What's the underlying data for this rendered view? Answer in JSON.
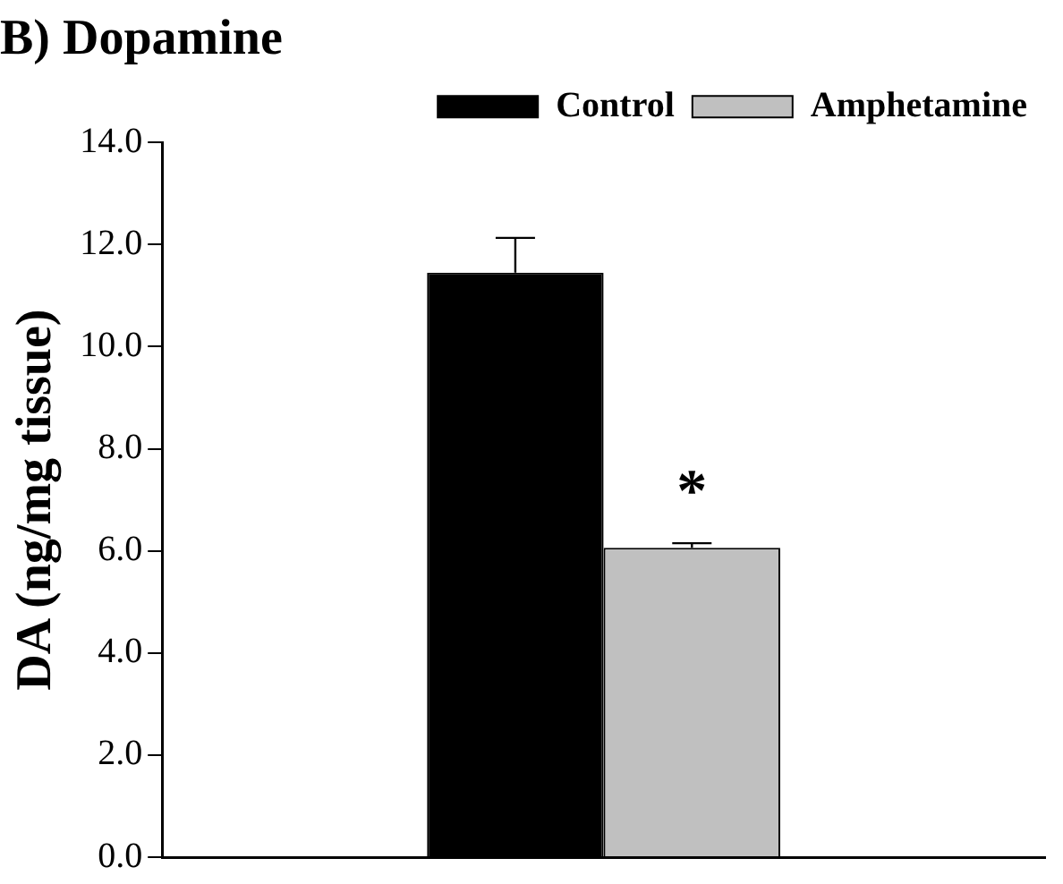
{
  "chart_data": {
    "type": "bar",
    "title": "B) Dopamine",
    "ylabel": "DA (ng/mg tissue)",
    "categories": [
      null
    ],
    "series": [
      {
        "name": "Control",
        "color": "#000000",
        "values": [
          11.45
        ],
        "errors": [
          [
            11.45,
            12.13
          ]
        ]
      },
      {
        "name": "Amphetamine",
        "color": "#c0c0c0",
        "values": [
          6.06
        ],
        "errors": [
          [
            6.06,
            6.15
          ]
        ]
      }
    ],
    "ylim": [
      0,
      14
    ],
    "yticks": [
      {
        "value": 0,
        "label": "0.0"
      },
      {
        "value": 2,
        "label": "2.0"
      },
      {
        "value": 4,
        "label": "4.0"
      },
      {
        "value": 6,
        "label": "6.0"
      },
      {
        "value": 8,
        "label": "8.0"
      },
      {
        "value": 10,
        "label": "10.0"
      },
      {
        "value": 12,
        "label": "12.0"
      },
      {
        "value": 14,
        "label": "14.0"
      }
    ],
    "annotations": [
      "*"
    ],
    "legend": "top right",
    "grid": false
  }
}
